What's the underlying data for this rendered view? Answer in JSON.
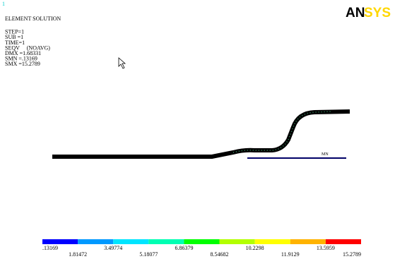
{
  "window_number": "1",
  "info": {
    "lines": [
      "ELEMENT SOLUTION",
      "STEP=1",
      "SUB =1",
      "TIME=1",
      "SEQV     (NOAVG)",
      "DMX =1.68331",
      "SMN =.13169",
      "SMX =15.2789"
    ]
  },
  "logo": {
    "left": "AN",
    "right": "SYS"
  },
  "marker_label": "MN",
  "legend": {
    "labels": [
      ".13169",
      "1.81472",
      "3.49774",
      "5.18077",
      "6.86379",
      "8.54682",
      "10.2298",
      "11.9129",
      "13.5959",
      "15.2789"
    ],
    "colors": [
      "#0000ff",
      "#0099ff",
      "#00e5ff",
      "#00ffb3",
      "#00ff00",
      "#b3ff00",
      "#ffff00",
      "#ffb300",
      "#ff0000"
    ]
  }
}
